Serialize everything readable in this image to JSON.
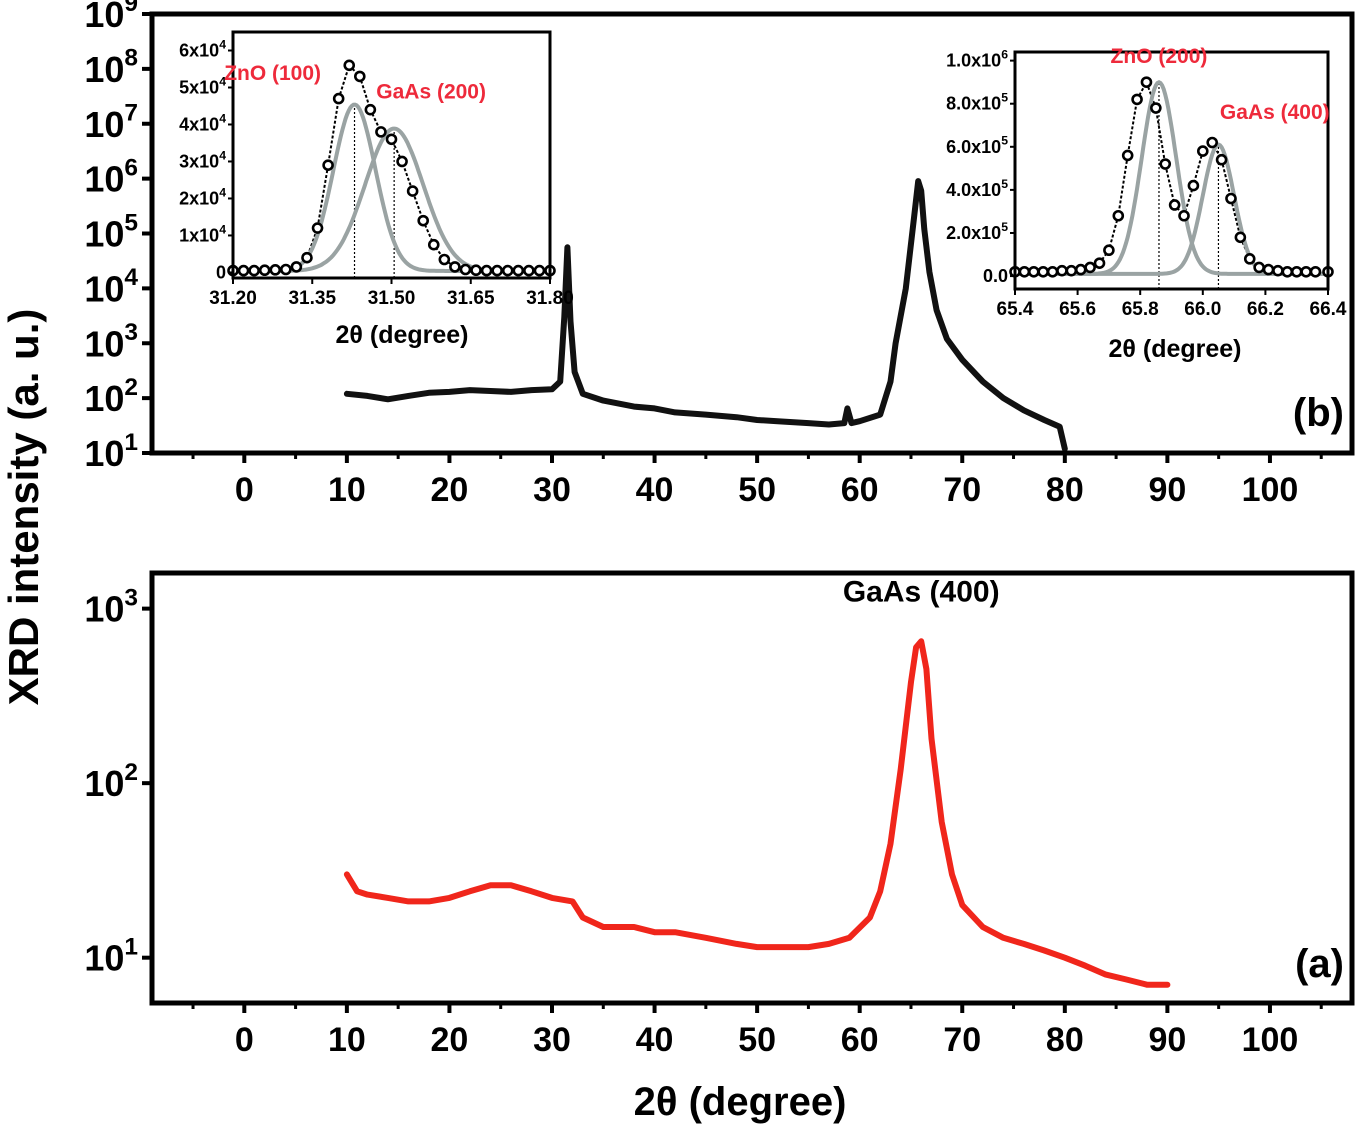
{
  "figure": {
    "ylabel": "XRD intensity (a. u.)",
    "xlabel": "2θ (degree)"
  },
  "chart_data": [
    {
      "id": "panel-b",
      "type": "line",
      "panel_label": "(b)",
      "yscale": "log",
      "xlim": [
        -9,
        108
      ],
      "ylim": [
        10,
        1000000000
      ],
      "xticks": [
        0,
        10,
        20,
        30,
        40,
        50,
        60,
        70,
        80,
        90,
        100
      ],
      "yticks": [
        {
          "value": 10,
          "base": "10",
          "exp": "1"
        },
        {
          "value": 100,
          "base": "10",
          "exp": "2"
        },
        {
          "value": 1000,
          "base": "10",
          "exp": "3"
        },
        {
          "value": 10000,
          "base": "10",
          "exp": "4"
        },
        {
          "value": 100000,
          "base": "10",
          "exp": "5"
        },
        {
          "value": 1000000,
          "base": "10",
          "exp": "6"
        },
        {
          "value": 10000000,
          "base": "10",
          "exp": "7"
        },
        {
          "value": 100000000,
          "base": "10",
          "exp": "8"
        },
        {
          "value": 1000000000,
          "base": "10",
          "exp": "9"
        }
      ],
      "color": "#111111",
      "series": [
        {
          "x": [
            10,
            12,
            14,
            16,
            18,
            20,
            22,
            24,
            26,
            28,
            30,
            30.8,
            31.2,
            31.5,
            31.8,
            32.2,
            33,
            35,
            38,
            40,
            42,
            45,
            48,
            50,
            52,
            55,
            57,
            58.5,
            58.8,
            59.2,
            60,
            62,
            63,
            63.5,
            64.5,
            65.3,
            65.7,
            66.0,
            66.3,
            66.8,
            67.5,
            68.5,
            70,
            72,
            74,
            76,
            78,
            79.5,
            80
          ],
          "y": [
            120,
            110,
            95,
            110,
            125,
            130,
            140,
            135,
            130,
            140,
            145,
            200,
            3000,
            56000,
            2500,
            300,
            120,
            90,
            70,
            65,
            55,
            50,
            45,
            40,
            38,
            35,
            33,
            35,
            65,
            35,
            38,
            50,
            200,
            1000,
            10000,
            200000,
            900000,
            600000,
            120000,
            20000,
            4000,
            1200,
            500,
            200,
            100,
            60,
            40,
            30,
            12
          ]
        }
      ],
      "insets": [
        {
          "id": "inset-left",
          "type": "scatter",
          "xlabel": "2θ (degree)",
          "xlim": [
            31.2,
            31.8
          ],
          "ylim": [
            -1500,
            65000
          ],
          "xticks": [
            "31.20",
            "31.35",
            "31.50",
            "31.65",
            "31.80"
          ],
          "yticks": [
            {
              "value": 0,
              "base": "0",
              "exp": ""
            },
            {
              "value": 10000,
              "base": "1x10",
              "exp": "4"
            },
            {
              "value": 20000,
              "base": "2x10",
              "exp": "4"
            },
            {
              "value": 30000,
              "base": "3x10",
              "exp": "4"
            },
            {
              "value": 40000,
              "base": "4x10",
              "exp": "4"
            },
            {
              "value": 50000,
              "base": "5x10",
              "exp": "4"
            },
            {
              "value": 60000,
              "base": "6x10",
              "exp": "4"
            }
          ],
          "points_x": [
            31.2,
            31.22,
            31.24,
            31.26,
            31.28,
            31.3,
            31.32,
            31.34,
            31.36,
            31.38,
            31.4,
            31.42,
            31.44,
            31.46,
            31.48,
            31.5,
            31.52,
            31.54,
            31.56,
            31.58,
            31.6,
            31.62,
            31.64,
            31.66,
            31.68,
            31.7,
            31.72,
            31.74,
            31.76,
            31.78,
            31.8
          ],
          "points_y": [
            500,
            500,
            500,
            600,
            700,
            800,
            1500,
            4000,
            12000,
            29000,
            47000,
            56000,
            53000,
            44000,
            38000,
            36000,
            30000,
            22000,
            14000,
            7500,
            3500,
            1500,
            800,
            600,
            500,
            500,
            500,
            500,
            500,
            500,
            500
          ],
          "fits": [
            {
              "center": 31.43,
              "amplitude": 45000,
              "sigma": 0.04,
              "baseline": 400
            },
            {
              "center": 31.505,
              "amplitude": 38500,
              "sigma": 0.055,
              "baseline": 400
            }
          ],
          "vlines": [
            31.43,
            31.505
          ],
          "annotations": [
            {
              "text": "ZnO (100)",
              "x": 31.275,
              "y": 52000
            },
            {
              "text": "GaAs (200)",
              "x": 31.575,
              "y": 47000
            }
          ]
        },
        {
          "id": "inset-right",
          "type": "scatter",
          "xlabel": "2θ (degree)",
          "xlim": [
            65.4,
            66.4
          ],
          "ylim": [
            -60000,
            1040000
          ],
          "xticks": [
            "65.4",
            "65.6",
            "65.8",
            "66.0",
            "66.2",
            "66.4"
          ],
          "yticks": [
            {
              "value": 0,
              "base": "0.0",
              "exp": ""
            },
            {
              "value": 200000,
              "base": "2.0x10",
              "exp": "5"
            },
            {
              "value": 400000,
              "base": "4.0x10",
              "exp": "5"
            },
            {
              "value": 600000,
              "base": "6.0x10",
              "exp": "5"
            },
            {
              "value": 800000,
              "base": "8.0x10",
              "exp": "5"
            },
            {
              "value": 1000000,
              "base": "1.0x10",
              "exp": "6"
            }
          ],
          "points_x": [
            65.4,
            65.43,
            65.46,
            65.49,
            65.52,
            65.55,
            65.58,
            65.61,
            65.64,
            65.67,
            65.7,
            65.73,
            65.76,
            65.79,
            65.82,
            65.85,
            65.88,
            65.91,
            65.94,
            65.97,
            66.0,
            66.03,
            66.06,
            66.09,
            66.12,
            66.15,
            66.18,
            66.21,
            66.24,
            66.27,
            66.3,
            66.33,
            66.36,
            66.4
          ],
          "points_y": [
            20000,
            20000,
            20000,
            20000,
            20000,
            25000,
            25000,
            30000,
            40000,
            60000,
            120000,
            280000,
            560000,
            820000,
            900000,
            780000,
            520000,
            330000,
            280000,
            420000,
            580000,
            620000,
            540000,
            360000,
            180000,
            80000,
            40000,
            30000,
            25000,
            20000,
            20000,
            20000,
            20000,
            20000
          ],
          "fits": [
            {
              "center": 65.86,
              "amplitude": 890000,
              "sigma": 0.055,
              "baseline": 10000
            },
            {
              "center": 66.05,
              "amplitude": 600000,
              "sigma": 0.05,
              "baseline": 10000
            }
          ],
          "vlines": [
            65.86,
            66.05
          ],
          "annotations": [
            {
              "text": "ZnO (200)",
              "x": 65.86,
              "y": 990000
            },
            {
              "text": "GaAs (400)",
              "x": 66.23,
              "y": 730000
            }
          ]
        }
      ]
    },
    {
      "id": "panel-a",
      "type": "line",
      "panel_label": "(a)",
      "yscale": "log",
      "xlim": [
        -9,
        108
      ],
      "ylim": [
        5.5,
        1600
      ],
      "xticks": [
        0,
        10,
        20,
        30,
        40,
        50,
        60,
        70,
        80,
        90,
        100
      ],
      "yticks": [
        {
          "value": 10,
          "base": "10",
          "exp": "1"
        },
        {
          "value": 100,
          "base": "10",
          "exp": "2"
        },
        {
          "value": 1000,
          "base": "10",
          "exp": "3"
        }
      ],
      "color": "#f0261b",
      "series": [
        {
          "x": [
            10,
            11,
            12,
            14,
            16,
            18,
            20,
            22,
            24,
            26,
            28,
            30,
            32,
            33,
            35,
            38,
            40,
            42,
            45,
            48,
            50,
            52,
            55,
            57,
            59,
            61,
            62,
            63,
            64,
            65,
            65.5,
            66,
            66.5,
            67,
            68,
            69,
            70,
            72,
            74,
            76,
            78,
            80,
            82,
            84,
            86,
            88,
            90
          ],
          "y": [
            30,
            24,
            23,
            22,
            21,
            21,
            22,
            24,
            26,
            26,
            24,
            22,
            21,
            17,
            15,
            15,
            14,
            14,
            13,
            12,
            11.5,
            11.5,
            11.5,
            12,
            13,
            17,
            24,
            45,
            120,
            380,
            600,
            650,
            450,
            180,
            60,
            30,
            20,
            15,
            13,
            12,
            11,
            10,
            9,
            8,
            7.5,
            7,
            7
          ]
        }
      ],
      "annotations": [
        {
          "text": "GaAs (400)",
          "x": 66,
          "y": 1100
        }
      ]
    }
  ]
}
